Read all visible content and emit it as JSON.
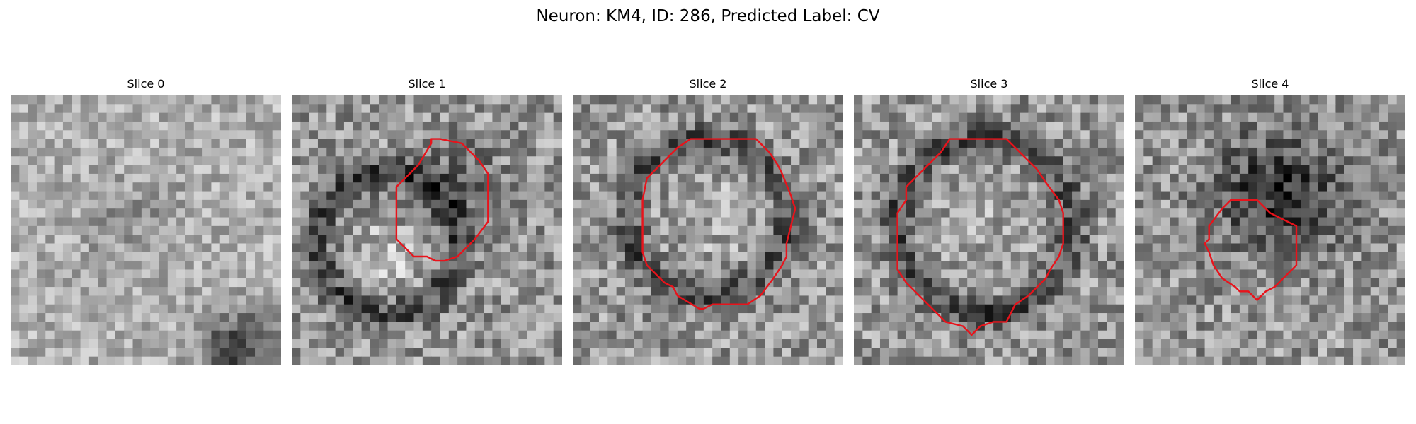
{
  "figure": {
    "title": "Neuron: KM4, ID: 286, Predicted Label: CV"
  },
  "contour_color": "#e8131b",
  "colormap": "grayscale",
  "panels": [
    {
      "title": "Slice 0",
      "has_contour": false
    },
    {
      "title": "Slice 1",
      "has_contour": true
    },
    {
      "title": "Slice 2",
      "has_contour": true
    },
    {
      "title": "Slice 3",
      "has_contour": true
    },
    {
      "title": "Slice 4",
      "has_contour": true
    }
  ]
}
